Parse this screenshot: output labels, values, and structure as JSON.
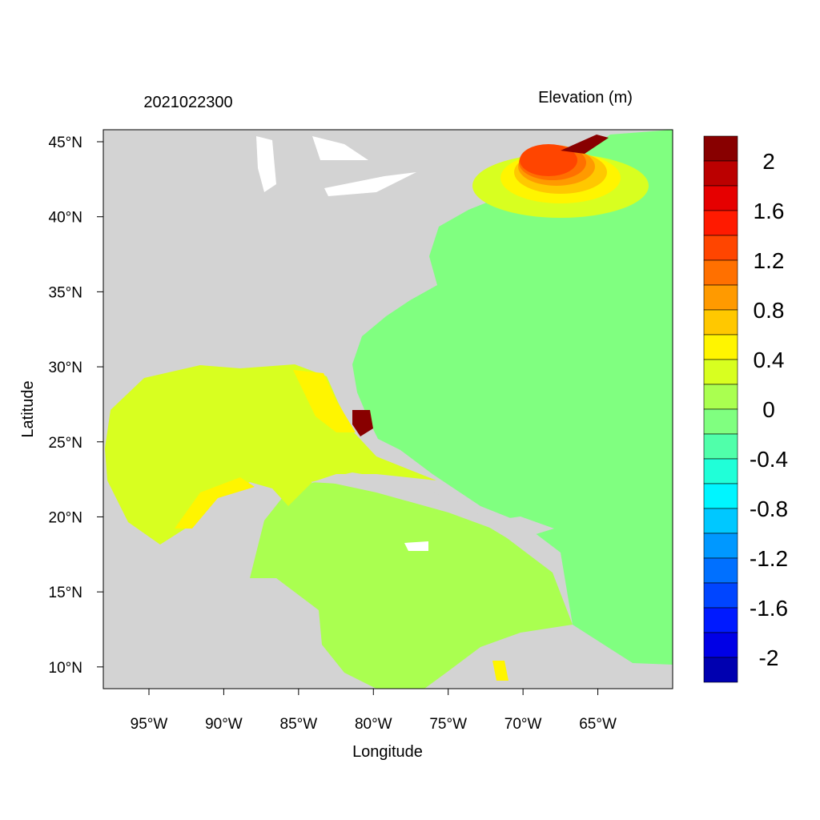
{
  "title_left": "2021022300",
  "title_right": "Elevation (m)",
  "x_axis": {
    "label": "Longitude",
    "range": [
      -98.05,
      -60.0
    ],
    "ticks": [
      {
        "value": -95,
        "label": "95°W"
      },
      {
        "value": -90,
        "label": "90°W"
      },
      {
        "value": -85,
        "label": "85°W"
      },
      {
        "value": -80,
        "label": "80°W"
      },
      {
        "value": -75,
        "label": "75°W"
      },
      {
        "value": -70,
        "label": "70°W"
      },
      {
        "value": -65,
        "label": "65°W"
      }
    ]
  },
  "y_axis": {
    "label": "Latitude",
    "range": [
      8.55,
      45.8
    ],
    "ticks": [
      {
        "value": 10,
        "label": "10°N"
      },
      {
        "value": 15,
        "label": "15°N"
      },
      {
        "value": 20,
        "label": "20°N"
      },
      {
        "value": 25,
        "label": "25°N"
      },
      {
        "value": 30,
        "label": "30°N"
      },
      {
        "value": 35,
        "label": "35°N"
      },
      {
        "value": 40,
        "label": "40°N"
      },
      {
        "value": 45,
        "label": "45°N"
      }
    ]
  },
  "colorbar": {
    "range": [
      -2.2,
      2.2
    ],
    "step": 0.2,
    "colors_top_to_bottom": [
      "#880000",
      "#bb0000",
      "#e60000",
      "#ff1a00",
      "#ff4500",
      "#ff7000",
      "#ff9a00",
      "#ffc800",
      "#fff500",
      "#d8ff20",
      "#aaff50",
      "#80ff80",
      "#50ffaa",
      "#20ffd8",
      "#00f5ff",
      "#00c8ff",
      "#0098ff",
      "#0070ff",
      "#0045ff",
      "#001aff",
      "#0000e6",
      "#0000b0"
    ],
    "labels": [
      {
        "value": 2,
        "label": "2"
      },
      {
        "value": 1.6,
        "label": "1.6"
      },
      {
        "value": 1.2,
        "label": "1.2"
      },
      {
        "value": 0.8,
        "label": "0.8"
      },
      {
        "value": 0.4,
        "label": "0.4"
      },
      {
        "value": 0,
        "label": "0"
      },
      {
        "value": -0.4,
        "label": "-0.4"
      },
      {
        "value": -0.8,
        "label": "-0.8"
      },
      {
        "value": -1.2,
        "label": "-1.2"
      },
      {
        "value": -1.6,
        "label": "-1.6"
      },
      {
        "value": -2,
        "label": "-2"
      }
    ]
  },
  "colors": {
    "land": "#d3d3d3",
    "lakes": "#ffffff"
  }
}
